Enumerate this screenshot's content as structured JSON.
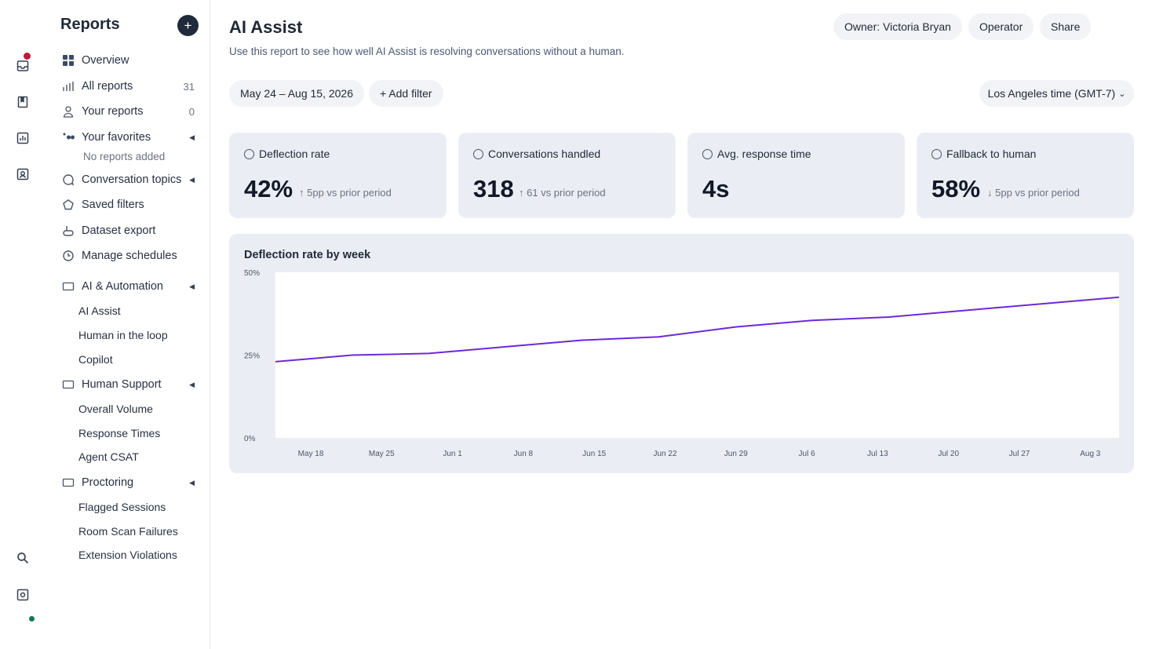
{
  "rail": {
    "icons": [
      "inbox-icon",
      "book-icon",
      "bar-chart-icon",
      "contact-icon",
      "search-icon",
      "settings-icon"
    ],
    "colors": {
      "notification_dot": "#c2183a",
      "status_dot": "#0f7a54"
    }
  },
  "sidebar": {
    "title": "Reports",
    "add_label": "+",
    "items": [
      {
        "label": "Overview",
        "icon": "grid-icon"
      },
      {
        "label": "All reports",
        "icon": "bar-chart-icon",
        "count": "31"
      },
      {
        "label": "Your reports",
        "icon": "user-icon",
        "count": "0"
      },
      {
        "label": "Your favorites",
        "icon": "favorites-icon",
        "caret": "◀"
      },
      {
        "label": "Conversation topics",
        "icon": "chat-icon",
        "caret": "◀"
      },
      {
        "label": "Saved filters",
        "icon": "pentagon-icon"
      },
      {
        "label": "Dataset export",
        "icon": "export-icon"
      },
      {
        "label": "Manage schedules",
        "icon": "clock-icon"
      }
    ],
    "favorites_empty": "No reports added",
    "sections": [
      {
        "label": "AI & Automation",
        "icon": "folder-icon",
        "caret": "◀",
        "children": [
          "AI Assist",
          "Human in the loop",
          "Copilot"
        ]
      },
      {
        "label": "Human Support",
        "icon": "folder-icon",
        "caret": "◀",
        "children": [
          "Overall Volume",
          "Response Times",
          "Agent CSAT"
        ]
      },
      {
        "label": "Proctoring",
        "icon": "folder-icon",
        "caret": "◀",
        "children": [
          "Flagged Sessions",
          "Room Scan Failures",
          "Extension Violations"
        ]
      }
    ]
  },
  "header": {
    "title": "AI Assist",
    "description": "Use this report to see how well AI Assist is resolving conversations without a human.",
    "owner_label": "Owner: Victoria Bryan",
    "operator_label": "Operator",
    "share_label": "Share"
  },
  "filters": {
    "date_range": "May 24 – Aug 15, 2026",
    "add_filter": "+ Add filter",
    "timezone": "Los Angeles time (GMT-7)",
    "timezone_caret": "⌄"
  },
  "metrics": [
    {
      "title": "Deflection rate",
      "value": "42%",
      "arrow": "↑",
      "delta": "5pp vs prior period"
    },
    {
      "title": "Conversations handled",
      "value": "318",
      "arrow": "↑",
      "delta": "61 vs prior period"
    },
    {
      "title": "Avg. response time",
      "value": "4s"
    },
    {
      "title": "Fallback to human",
      "value": "58%",
      "arrow": "↓",
      "delta": "5pp vs prior period"
    }
  ],
  "chart_data": {
    "type": "line",
    "title": "Deflection rate by week",
    "xlabel": "",
    "ylabel": "",
    "y_ticks": [
      "0%",
      "25%",
      "50%"
    ],
    "ylim": [
      0,
      50
    ],
    "categories": [
      "May 18",
      "May 25",
      "Jun 1",
      "Jun 8",
      "Jun 15",
      "Jun 22",
      "Jun 29",
      "Jul 6",
      "Jul 13",
      "Jul 20",
      "Jul 27",
      "Aug 3"
    ],
    "series": [
      {
        "values": [
          23,
          25,
          25.5,
          27.5,
          29.5,
          30.5,
          33.5,
          35.5,
          36.5,
          38.5,
          40.5,
          42.5
        ],
        "color": "#6d28d9"
      }
    ],
    "grid": false,
    "plot_background": "#ffffff"
  }
}
